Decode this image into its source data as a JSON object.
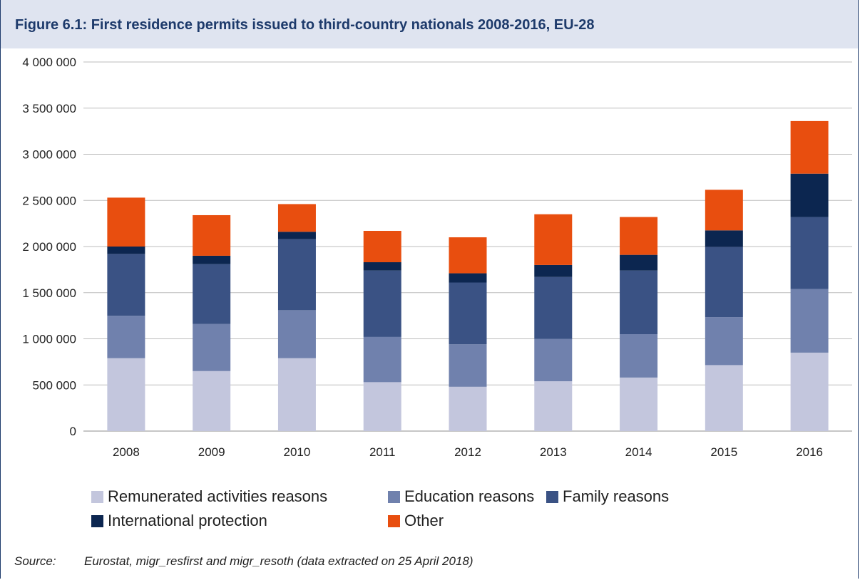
{
  "title": "Figure 6.1: First residence permits issued to third-country nationals 2008-2016, EU-28",
  "source_label": "Source:",
  "source_text": "Eurostat, migr_resfirst and migr_resoth (data extracted on 25 April 2018)",
  "chart_data": {
    "type": "bar",
    "stacked": true,
    "title": "Figure 6.1: First residence permits issued to third-country nationals 2008-2016, EU-28",
    "xlabel": "",
    "ylabel": "",
    "ylim": [
      0,
      4000000
    ],
    "yticks": [
      0,
      500000,
      1000000,
      1500000,
      2000000,
      2500000,
      3000000,
      3500000,
      4000000
    ],
    "ytick_labels": [
      "0",
      "500 000",
      "1 000 000",
      "1 500 000",
      "2 000 000",
      "2 500 000",
      "3 000 000",
      "3 500 000",
      "4 000 000"
    ],
    "categories": [
      "2008",
      "2009",
      "2010",
      "2011",
      "2012",
      "2013",
      "2014",
      "2015",
      "2016"
    ],
    "grid": "horizontal",
    "legend_position": "bottom",
    "series": [
      {
        "name": "Remunerated activities reasons",
        "color": "#c3c6dd",
        "values": [
          790000,
          650000,
          790000,
          530000,
          480000,
          540000,
          580000,
          715000,
          850000
        ]
      },
      {
        "name": "Education reasons",
        "color": "#7081ad",
        "values": [
          460000,
          510000,
          520000,
          490000,
          460000,
          460000,
          470000,
          520000,
          690000
        ]
      },
      {
        "name": "Family reasons",
        "color": "#3a5284",
        "values": [
          670000,
          650000,
          770000,
          720000,
          670000,
          670000,
          690000,
          760000,
          780000
        ]
      },
      {
        "name": "International protection",
        "color": "#0c2650",
        "values": [
          80000,
          90000,
          80000,
          90000,
          100000,
          130000,
          170000,
          180000,
          470000
        ]
      },
      {
        "name": "Other",
        "color": "#e84e0f",
        "values": [
          530000,
          440000,
          300000,
          340000,
          390000,
          550000,
          410000,
          440000,
          570000
        ]
      }
    ]
  },
  "legend_rows": [
    [
      "Remunerated activities reasons",
      "Education reasons",
      "Family reasons"
    ],
    [
      "International protection",
      "Other"
    ]
  ]
}
